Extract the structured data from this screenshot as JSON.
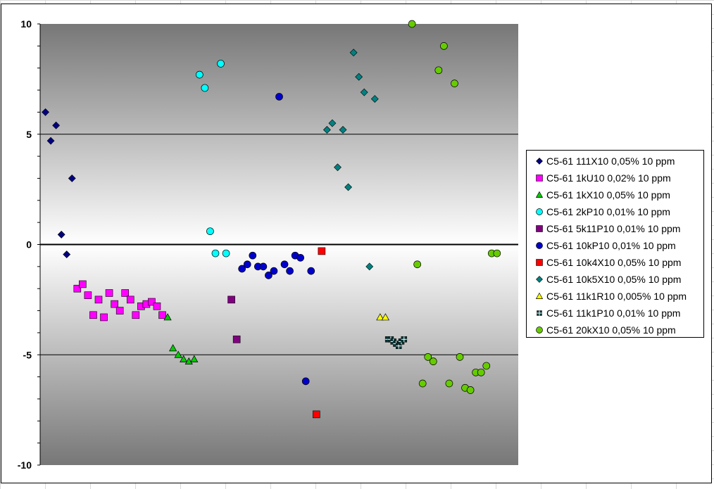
{
  "chart_data": {
    "type": "scatter",
    "title": "",
    "xlabel": "",
    "ylabel": "",
    "ylim": [
      -10,
      10
    ],
    "yticks": [
      10,
      5,
      0,
      -5,
      -10
    ],
    "xlim": [
      0,
      90
    ],
    "grid": {
      "horizontal_major": true,
      "vertical": false
    },
    "legend_position": "right",
    "background": "gray gradient, lighter toward zero",
    "series": [
      {
        "name": "C5-61 111X10  0,05% 10 ppm",
        "marker": "diamond",
        "color": "#000080",
        "x": [
          1,
          2,
          3,
          4,
          5,
          6
        ],
        "y": [
          6.0,
          4.7,
          5.4,
          0.45,
          -0.45,
          3.0
        ]
      },
      {
        "name": "C5-61 1kU10  0,02% 10 ppm",
        "marker": "square",
        "color": "#FF00FF",
        "x": [
          7,
          8,
          9,
          10,
          11,
          12,
          13,
          14,
          15,
          16,
          17,
          18,
          19,
          20,
          21,
          22,
          23
        ],
        "y": [
          -2.0,
          -1.8,
          -2.3,
          -3.2,
          -2.5,
          -3.3,
          -2.2,
          -2.7,
          -3.0,
          -2.2,
          -2.5,
          -3.2,
          -2.8,
          -2.7,
          -2.6,
          -2.8,
          -3.2
        ]
      },
      {
        "name": "C5-61 1kX10  0,05% 10 ppm",
        "marker": "triangle",
        "color": "#00CC00",
        "x": [
          24,
          25,
          26,
          27,
          28,
          29
        ],
        "y": [
          -3.3,
          -4.7,
          -5.0,
          -5.2,
          -5.3,
          -5.2
        ]
      },
      {
        "name": "C5-61 2kP10  0,01% 10 ppm",
        "marker": "circle",
        "color": "#00FFFF",
        "x": [
          30,
          31,
          32,
          33,
          34,
          35
        ],
        "y": [
          7.7,
          7.1,
          0.6,
          -0.4,
          8.2,
          -0.4
        ]
      },
      {
        "name": "C5-61 5k11P10  0,01% 10 ppm",
        "marker": "square",
        "color": "#800080",
        "x": [
          36,
          37
        ],
        "y": [
          -2.5,
          -4.3
        ]
      },
      {
        "name": "C5-61 10kP10  0,01% 10 ppm",
        "marker": "circle",
        "color": "#0000CC",
        "x": [
          38,
          39,
          40,
          41,
          42,
          43,
          44,
          45,
          46,
          47,
          48,
          49,
          50,
          51
        ],
        "y": [
          -1.1,
          -0.9,
          -0.5,
          -1.0,
          -1.0,
          -1.4,
          -1.2,
          6.7,
          -0.9,
          -1.2,
          -0.5,
          -0.6,
          -6.2,
          -1.2
        ]
      },
      {
        "name": "C5-61 10k4X10  0,05% 10 ppm",
        "marker": "square",
        "color": "#FF0000",
        "x": [
          52,
          53
        ],
        "y": [
          -7.7,
          -0.3
        ]
      },
      {
        "name": "C5-61 10k5X10  0,05% 10 ppm",
        "marker": "diamond",
        "color": "#008080",
        "x": [
          54,
          55,
          56,
          57,
          58,
          59,
          60,
          61,
          62,
          63
        ],
        "y": [
          5.2,
          5.5,
          3.5,
          5.2,
          2.6,
          8.7,
          7.6,
          6.9,
          -1.0,
          6.6
        ]
      },
      {
        "name": "C5-61 11k1R10  0,005% 10 ppm",
        "marker": "triangle",
        "color": "#FFFF00",
        "x": [
          64,
          65
        ],
        "y": [
          -3.3,
          -3.3
        ]
      },
      {
        "name": "C5-61 11k1P10  0,01% 10 ppm",
        "marker": "cross-square",
        "color": "#003333",
        "x": [
          65.5,
          66,
          66.5,
          67,
          67.5,
          68,
          68.5
        ],
        "y": [
          -4.3,
          -4.3,
          -4.4,
          -4.5,
          -4.6,
          -4.4,
          -4.3
        ]
      },
      {
        "name": "C5-61 20kX10  0,05% 10 ppm",
        "marker": "circle",
        "color": "#66CC00",
        "x": [
          70,
          71,
          72,
          73,
          74,
          75,
          76,
          77,
          78,
          79,
          80,
          81,
          82,
          83,
          84,
          85,
          86
        ],
        "y": [
          10.0,
          -0.9,
          -6.3,
          -5.1,
          -5.3,
          7.9,
          9.0,
          -6.3,
          7.3,
          -5.1,
          -6.5,
          -6.6,
          -5.8,
          -5.8,
          -5.5,
          -0.4,
          -0.4
        ]
      }
    ]
  }
}
